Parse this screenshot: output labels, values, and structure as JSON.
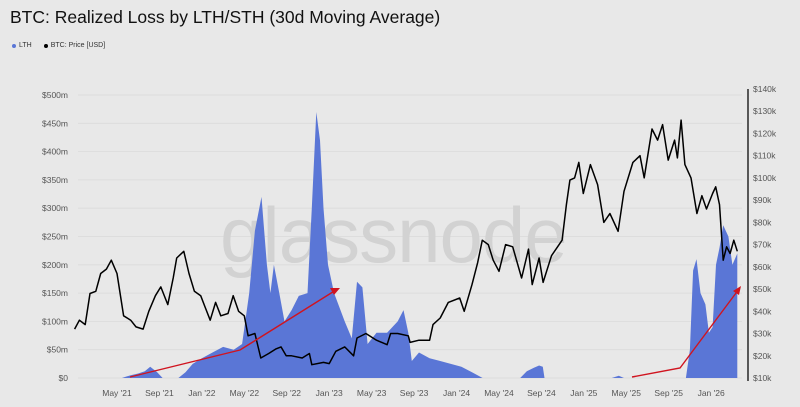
{
  "watermark": "glassnode",
  "chart_data": {
    "type": "area",
    "title": "BTC: Realized Loss by LTH/STH (30d Moving Average)",
    "legend_position": "top-left",
    "grid": true,
    "x_ticks": [
      "May '21",
      "Sep '21",
      "Jan '22",
      "May '22",
      "Sep '22",
      "Jan '23",
      "May '23",
      "Sep '23",
      "Jan '24",
      "May '24",
      "Sep '24",
      "Jan '25",
      "May '25",
      "Sep '25",
      "Jan '26"
    ],
    "x_tick_dates": [
      "2021-05-01",
      "2021-09-01",
      "2022-01-01",
      "2022-05-01",
      "2022-09-01",
      "2023-01-01",
      "2023-05-01",
      "2023-09-01",
      "2024-01-01",
      "2024-05-01",
      "2024-09-01",
      "2025-01-01",
      "2025-05-01",
      "2025-09-01",
      "2026-01-01"
    ],
    "y_left": {
      "ticks": [
        "$0",
        "$50m",
        "$100m",
        "$150m",
        "$200m",
        "$250m",
        "$300m",
        "$350m",
        "$400m",
        "$450m",
        "$500m"
      ],
      "range": [
        0,
        500
      ],
      "unit": "USD millions"
    },
    "y_right": {
      "ticks": [
        "$10k",
        "$20k",
        "$30k",
        "$40k",
        "$50k",
        "$60k",
        "$70k",
        "$80k",
        "$90k",
        "$100k",
        "$110k",
        "$120k",
        "$130k",
        "$140k"
      ],
      "range": [
        10,
        140
      ],
      "unit": "USD thousands"
    },
    "series": [
      {
        "name": "LTH",
        "axis": "left",
        "kind": "area",
        "color": "#5a76d6",
        "points": [
          [
            "2021-01-01",
            0
          ],
          [
            "2021-05-15",
            0
          ],
          [
            "2021-06-10",
            5
          ],
          [
            "2021-07-01",
            8
          ],
          [
            "2021-07-20",
            12
          ],
          [
            "2021-08-05",
            20
          ],
          [
            "2021-08-25",
            10
          ],
          [
            "2021-09-10",
            0
          ],
          [
            "2021-10-25",
            0
          ],
          [
            "2021-11-15",
            10
          ],
          [
            "2021-12-05",
            25
          ],
          [
            "2022-01-01",
            35
          ],
          [
            "2022-02-01",
            45
          ],
          [
            "2022-03-01",
            55
          ],
          [
            "2022-04-01",
            50
          ],
          [
            "2022-04-25",
            60
          ],
          [
            "2022-05-15",
            150
          ],
          [
            "2022-06-01",
            260
          ],
          [
            "2022-06-20",
            320
          ],
          [
            "2022-07-05",
            200
          ],
          [
            "2022-07-15",
            150
          ],
          [
            "2022-07-25",
            200
          ],
          [
            "2022-08-10",
            150
          ],
          [
            "2022-08-25",
            100
          ],
          [
            "2022-09-15",
            120
          ],
          [
            "2022-10-05",
            145
          ],
          [
            "2022-10-30",
            150
          ],
          [
            "2022-11-12",
            300
          ],
          [
            "2022-11-25",
            470
          ],
          [
            "2022-12-05",
            420
          ],
          [
            "2022-12-15",
            300
          ],
          [
            "2022-12-28",
            200
          ],
          [
            "2023-01-15",
            150
          ],
          [
            "2023-02-15",
            100
          ],
          [
            "2023-03-05",
            70
          ],
          [
            "2023-03-20",
            170
          ],
          [
            "2023-04-05",
            160
          ],
          [
            "2023-04-20",
            60
          ],
          [
            "2023-05-15",
            80
          ],
          [
            "2023-06-15",
            80
          ],
          [
            "2023-07-15",
            100
          ],
          [
            "2023-08-01",
            120
          ],
          [
            "2023-08-15",
            80
          ],
          [
            "2023-08-25",
            30
          ],
          [
            "2023-09-15",
            45
          ],
          [
            "2023-10-15",
            35
          ],
          [
            "2023-11-15",
            30
          ],
          [
            "2023-12-15",
            25
          ],
          [
            "2024-01-15",
            20
          ],
          [
            "2024-02-15",
            10
          ],
          [
            "2024-03-15",
            0
          ],
          [
            "2024-07-01",
            0
          ],
          [
            "2024-07-20",
            12
          ],
          [
            "2024-08-10",
            18
          ],
          [
            "2024-08-25",
            22
          ],
          [
            "2024-09-05",
            20
          ],
          [
            "2024-09-10",
            0
          ],
          [
            "2025-03-20",
            0
          ],
          [
            "2025-04-10",
            4
          ],
          [
            "2025-04-25",
            0
          ],
          [
            "2025-10-20",
            0
          ],
          [
            "2025-11-01",
            50
          ],
          [
            "2025-11-10",
            190
          ],
          [
            "2025-11-20",
            210
          ],
          [
            "2025-12-01",
            150
          ],
          [
            "2025-12-15",
            130
          ],
          [
            "2025-12-25",
            80
          ],
          [
            "2026-01-05",
            90
          ],
          [
            "2026-01-15",
            200
          ],
          [
            "2026-01-25",
            230
          ],
          [
            "2026-02-05",
            270
          ],
          [
            "2026-02-20",
            250
          ],
          [
            "2026-03-01",
            200
          ],
          [
            "2026-03-15",
            220
          ]
        ]
      },
      {
        "name": "BTC: Price [USD]",
        "axis": "right",
        "kind": "line",
        "color": "#000000",
        "points": [
          [
            "2021-01-01",
            32
          ],
          [
            "2021-01-15",
            36
          ],
          [
            "2021-02-01",
            34
          ],
          [
            "2021-02-15",
            48
          ],
          [
            "2021-03-01",
            49
          ],
          [
            "2021-03-15",
            57
          ],
          [
            "2021-04-01",
            59
          ],
          [
            "2021-04-15",
            63
          ],
          [
            "2021-05-01",
            57
          ],
          [
            "2021-05-20",
            38
          ],
          [
            "2021-06-10",
            36
          ],
          [
            "2021-06-25",
            33
          ],
          [
            "2021-07-15",
            32
          ],
          [
            "2021-08-01",
            40
          ],
          [
            "2021-08-20",
            47
          ],
          [
            "2021-09-05",
            51
          ],
          [
            "2021-09-25",
            43
          ],
          [
            "2021-10-10",
            55
          ],
          [
            "2021-10-20",
            64
          ],
          [
            "2021-11-10",
            67
          ],
          [
            "2021-11-25",
            57
          ],
          [
            "2021-12-10",
            49
          ],
          [
            "2021-12-28",
            47
          ],
          [
            "2022-01-10",
            42
          ],
          [
            "2022-01-25",
            36
          ],
          [
            "2022-02-10",
            44
          ],
          [
            "2022-02-25",
            38
          ],
          [
            "2022-03-15",
            39
          ],
          [
            "2022-03-30",
            47
          ],
          [
            "2022-04-15",
            40
          ],
          [
            "2022-05-01",
            38
          ],
          [
            "2022-05-12",
            29
          ],
          [
            "2022-06-01",
            30
          ],
          [
            "2022-06-18",
            19
          ],
          [
            "2022-07-10",
            21
          ],
          [
            "2022-07-30",
            23
          ],
          [
            "2022-08-15",
            24
          ],
          [
            "2022-08-30",
            20
          ],
          [
            "2022-09-15",
            20
          ],
          [
            "2022-10-15",
            19
          ],
          [
            "2022-11-05",
            21
          ],
          [
            "2022-11-12",
            16
          ],
          [
            "2022-12-15",
            17
          ],
          [
            "2023-01-01",
            16.5
          ],
          [
            "2023-01-20",
            22
          ],
          [
            "2023-02-15",
            24
          ],
          [
            "2023-03-10",
            20
          ],
          [
            "2023-03-20",
            28
          ],
          [
            "2023-04-15",
            30
          ],
          [
            "2023-05-15",
            27
          ],
          [
            "2023-06-15",
            25
          ],
          [
            "2023-06-25",
            30
          ],
          [
            "2023-07-15",
            30
          ],
          [
            "2023-08-15",
            29
          ],
          [
            "2023-08-20",
            26
          ],
          [
            "2023-09-15",
            27
          ],
          [
            "2023-10-15",
            27
          ],
          [
            "2023-10-25",
            34
          ],
          [
            "2023-11-15",
            37
          ],
          [
            "2023-12-08",
            44
          ],
          [
            "2024-01-10",
            46
          ],
          [
            "2024-01-23",
            40
          ],
          [
            "2024-02-15",
            52
          ],
          [
            "2024-03-01",
            62
          ],
          [
            "2024-03-14",
            72
          ],
          [
            "2024-04-01",
            70
          ],
          [
            "2024-04-15",
            63
          ],
          [
            "2024-05-01",
            58
          ],
          [
            "2024-05-20",
            70
          ],
          [
            "2024-06-10",
            69
          ],
          [
            "2024-07-05",
            55
          ],
          [
            "2024-07-25",
            68
          ],
          [
            "2024-08-05",
            52
          ],
          [
            "2024-08-25",
            64
          ],
          [
            "2024-09-06",
            53
          ],
          [
            "2024-09-30",
            65
          ],
          [
            "2024-10-30",
            72
          ],
          [
            "2024-11-12",
            88
          ],
          [
            "2024-11-22",
            99
          ],
          [
            "2024-12-05",
            100
          ],
          [
            "2024-12-17",
            107
          ],
          [
            "2024-12-30",
            93
          ],
          [
            "2025-01-20",
            106
          ],
          [
            "2025-02-10",
            97
          ],
          [
            "2025-02-28",
            80
          ],
          [
            "2025-03-15",
            84
          ],
          [
            "2025-04-08",
            76
          ],
          [
            "2025-04-25",
            94
          ],
          [
            "2025-05-20",
            107
          ],
          [
            "2025-06-10",
            110
          ],
          [
            "2025-06-22",
            100
          ],
          [
            "2025-07-14",
            122
          ],
          [
            "2025-07-30",
            117
          ],
          [
            "2025-08-14",
            124
          ],
          [
            "2025-08-30",
            108
          ],
          [
            "2025-09-18",
            117
          ],
          [
            "2025-09-26",
            109
          ],
          [
            "2025-10-06",
            126
          ],
          [
            "2025-10-17",
            106
          ],
          [
            "2025-11-04",
            100
          ],
          [
            "2025-11-21",
            84
          ],
          [
            "2025-12-05",
            92
          ],
          [
            "2025-12-18",
            86
          ],
          [
            "2026-01-05",
            93
          ],
          [
            "2026-01-14",
            96
          ],
          [
            "2026-01-25",
            88
          ],
          [
            "2026-02-05",
            63
          ],
          [
            "2026-02-15",
            69
          ],
          [
            "2026-02-25",
            66
          ],
          [
            "2026-03-05",
            72
          ],
          [
            "2026-03-15",
            67
          ]
        ]
      }
    ]
  }
}
